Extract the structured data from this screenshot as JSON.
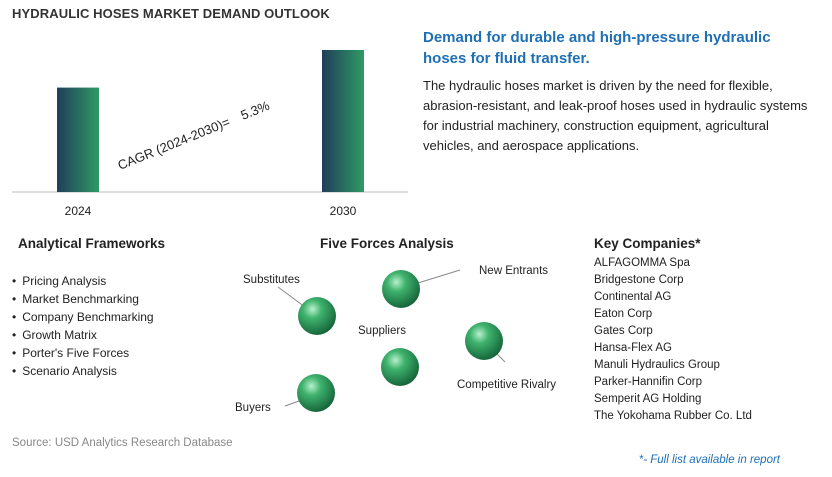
{
  "title": "HYDRAULIC HOSES MARKET DEMAND OUTLOOK",
  "chart_data": {
    "type": "bar",
    "categories": [
      "2024",
      "2030"
    ],
    "values": [
      1.0,
      1.36
    ],
    "annotation": {
      "label": "CAGR (2024-2030)=",
      "value": "5.3%"
    }
  },
  "headline": "Demand for durable and high-pressure hydraulic hoses for fluid transfer.",
  "description": "The hydraulic hoses market is driven by the need for flexible, abrasion-resistant, and leak-proof hoses used in hydraulic systems for industrial machinery, construction equipment, agricultural vehicles, and aerospace applications.",
  "frameworks": {
    "title": "Analytical Frameworks",
    "items": [
      "Pricing Analysis",
      "Market Benchmarking",
      "Company Benchmarking",
      "Growth Matrix",
      "Porter's Five Forces",
      "Scenario Analysis"
    ]
  },
  "five_forces": {
    "title": "Five Forces Analysis",
    "labels": {
      "substitutes": "Substitutes",
      "new_entrants": "New Entrants",
      "suppliers": "Suppliers",
      "competitive_rivalry": "Competitive Rivalry",
      "buyers": "Buyers"
    },
    "sphere_color": "#2e9e5b"
  },
  "companies": {
    "title": "Key Companies*",
    "items": [
      "ALFAGOMMA Spa",
      "Bridgestone Corp",
      "Continental AG",
      "Eaton Corp",
      "Gates Corp",
      "Hansa-Flex AG",
      "Manuli Hydraulics Group",
      "Parker-Hannifin Corp",
      "Semperit AG Holding",
      "The Yokohama Rubber Co. Ltd"
    ]
  },
  "source": "Source: USD Analytics Research Database",
  "note": "*- Full list available in report"
}
